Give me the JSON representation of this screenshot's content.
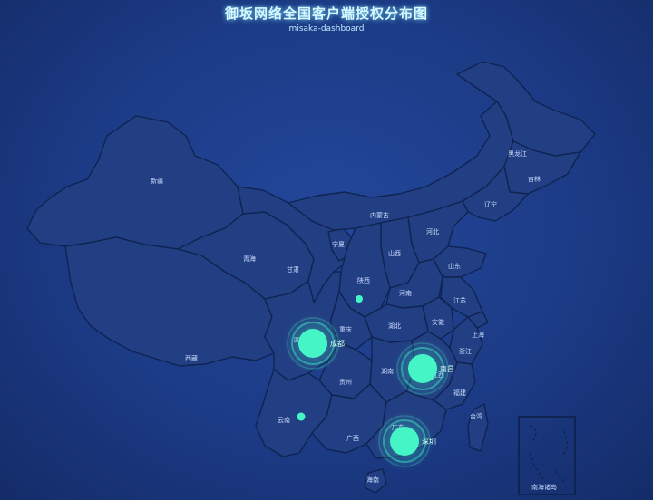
{
  "header": {
    "title": "御坂网络全国客户端授权分布图",
    "subtitle": "misaka-dashboard"
  },
  "colors": {
    "background": "#1c3b86",
    "province_fill": "#233f83",
    "province_border": "#0f2452",
    "marker": "#3ff7c8"
  },
  "provinces": [
    {
      "id": "xinjiang",
      "label": "新疆"
    },
    {
      "id": "tibet",
      "label": "西藏"
    },
    {
      "id": "qinghai",
      "label": "青海"
    },
    {
      "id": "gansu",
      "label": "甘肃"
    },
    {
      "id": "ningxia",
      "label": "宁夏"
    },
    {
      "id": "neimenggu",
      "label": "内蒙古"
    },
    {
      "id": "heilongjiang",
      "label": "黑龙江"
    },
    {
      "id": "jilin",
      "label": "吉林"
    },
    {
      "id": "liaoning",
      "label": "辽宁"
    },
    {
      "id": "hebei",
      "label": "河北"
    },
    {
      "id": "shanxi",
      "label": "山西"
    },
    {
      "id": "shaanxi",
      "label": "陕西"
    },
    {
      "id": "shandong",
      "label": "山东"
    },
    {
      "id": "henan",
      "label": "河南"
    },
    {
      "id": "anhui",
      "label": "安徽"
    },
    {
      "id": "jiangsu",
      "label": "江苏"
    },
    {
      "id": "shanghai",
      "label": "上海"
    },
    {
      "id": "zhejiang",
      "label": "浙江"
    },
    {
      "id": "hubei",
      "label": "湖北"
    },
    {
      "id": "sichuan",
      "label": "四川"
    },
    {
      "id": "chongqing",
      "label": "重庆"
    },
    {
      "id": "guizhou",
      "label": "贵州"
    },
    {
      "id": "yunnan",
      "label": "云南"
    },
    {
      "id": "hunan",
      "label": "湖南"
    },
    {
      "id": "jiangxi",
      "label": "江西"
    },
    {
      "id": "fujian",
      "label": "福建"
    },
    {
      "id": "guangxi",
      "label": "广西"
    },
    {
      "id": "guangdong",
      "label": "广东"
    },
    {
      "id": "taiwan",
      "label": "台湾"
    },
    {
      "id": "hainan",
      "label": "海南"
    }
  ],
  "cities": [
    {
      "id": "chengdu",
      "label": "成都",
      "size": "large"
    },
    {
      "id": "nanchang",
      "label": "南昌",
      "size": "large"
    },
    {
      "id": "shenzhen",
      "label": "深圳",
      "size": "large"
    },
    {
      "id": "xian",
      "label": "",
      "size": "small"
    },
    {
      "id": "kunming",
      "label": "",
      "size": "small"
    }
  ],
  "inset": {
    "label": "南海诸岛"
  }
}
